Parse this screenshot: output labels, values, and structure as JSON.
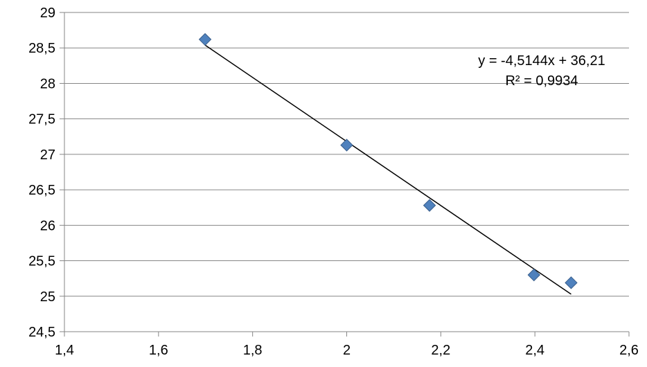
{
  "chart_data": {
    "type": "scatter",
    "xlim": [
      1.4,
      2.6
    ],
    "ylim": [
      24.5,
      29
    ],
    "x_ticks": [
      "1,4",
      "1,6",
      "1,8",
      "2",
      "2,2",
      "2,4",
      "2,6"
    ],
    "y_ticks": [
      "24,5",
      "25",
      "25,5",
      "26",
      "26,5",
      "27",
      "27,5",
      "28",
      "28,5",
      "29"
    ],
    "grid": true,
    "series": [
      {
        "x": [
          1.699,
          2.0,
          2.176,
          2.398,
          2.477
        ],
        "y": [
          28.62,
          27.13,
          26.28,
          25.3,
          25.19
        ],
        "marker": "diamond",
        "color": "#4f81bd"
      }
    ],
    "trendline": {
      "slope": -4.5144,
      "intercept": 36.21,
      "x_range": [
        1.699,
        2.477
      ],
      "color": "#000000",
      "equation": "y = -4,5144x + 36,21",
      "r_squared": "R² = 0,9934"
    },
    "colors": {
      "grid": "#868686",
      "axis": "#868686",
      "marker_edge": "#385d8a"
    }
  }
}
